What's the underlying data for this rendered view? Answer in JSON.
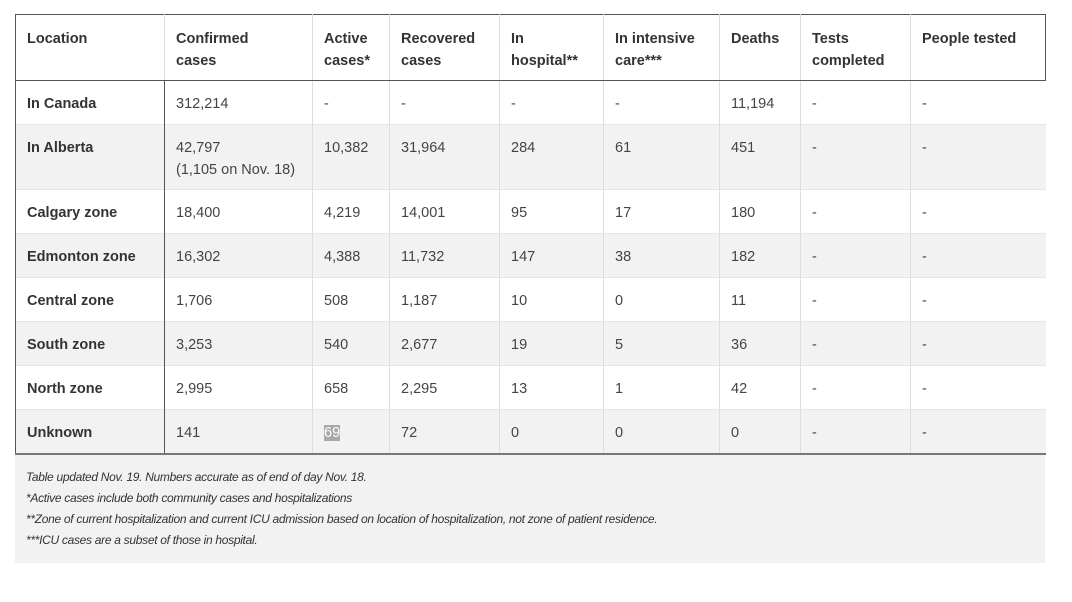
{
  "table": {
    "headers": [
      [
        "Location",
        ""
      ],
      [
        "Confirmed",
        "cases"
      ],
      [
        "Active",
        "cases*"
      ],
      [
        "Recovered",
        "cases"
      ],
      [
        "In",
        "hospital**"
      ],
      [
        "In intensive",
        "care***"
      ],
      [
        "Deaths",
        ""
      ],
      [
        "Tests",
        "completed"
      ],
      [
        "People tested",
        ""
      ]
    ],
    "rows": [
      [
        "In Canada",
        "312,214",
        "-",
        "-",
        "-",
        "-",
        "11,194",
        "-",
        "-"
      ],
      [
        "In Alberta",
        "42,797",
        "10,382",
        "31,964",
        "284",
        "61",
        "451",
        "-",
        "-"
      ],
      [
        "Calgary zone",
        "18,400",
        "4,219",
        "14,001",
        "95",
        "17",
        "180",
        "-",
        "-"
      ],
      [
        "Edmonton zone",
        "16,302",
        "4,388",
        "11,732",
        "147",
        "38",
        "182",
        "-",
        "-"
      ],
      [
        "Central zone",
        "1,706",
        "508",
        "1,187",
        "10",
        "0",
        "11",
        "-",
        "-"
      ],
      [
        "South zone",
        "3,253",
        "540",
        "2,677",
        "19",
        "5",
        "36",
        "-",
        "-"
      ],
      [
        "North zone",
        "2,995",
        "658",
        "2,295",
        "13",
        "1",
        "42",
        "-",
        "-"
      ],
      [
        "Unknown",
        "141",
        "69",
        "72",
        "0",
        "0",
        "0",
        "-",
        "-"
      ]
    ],
    "alberta_confirmed_note": "(1,105 on Nov. 18)"
  },
  "notes": [
    "Table updated Nov. 19. Numbers accurate as of end of day Nov. 18.",
    "*Active cases include both community cases and hospitalizations",
    "**Zone of current hospitalization and current ICU admission based on location of hospitalization, not zone of patient residence.",
    "***ICU cases are a subset of those in hospital."
  ],
  "colors": {
    "stripe": "#f2f2f2",
    "border": "#555555",
    "selection": "#a9a9a9"
  }
}
